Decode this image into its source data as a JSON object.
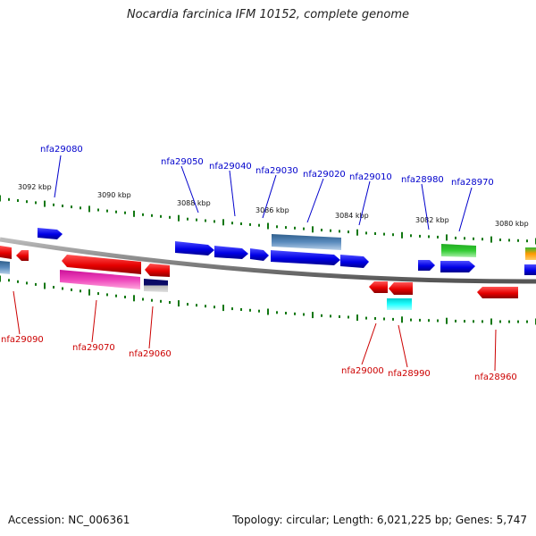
{
  "title": "Nocardia farcinica IFM 10152, complete genome",
  "footer": {
    "accession": "Accession: NC_006361",
    "summary": "Topology: circular; Length: 6,021,225 bp; Genes: 5,747"
  },
  "scale_labels": [
    "3092 kbp",
    "3090 kbp",
    "3088 kbp",
    "3086 kbp",
    "3084 kbp",
    "3082 kbp",
    "3080 kbp"
  ],
  "colors": {
    "forward_gene": "#0000ee",
    "reverse_gene": "#ee0000",
    "forward_label": "#0000cc",
    "reverse_label": "#cc0000",
    "tick": "#117711",
    "backbone": "#888888"
  },
  "forward_genes": [
    {
      "label": "nfa29080"
    },
    {
      "label": "nfa29050"
    },
    {
      "label": "nfa29040"
    },
    {
      "label": "nfa29030"
    },
    {
      "label": "nfa29020"
    },
    {
      "label": "nfa29010"
    },
    {
      "label": "nfa28980"
    },
    {
      "label": "nfa28970"
    }
  ],
  "reverse_genes": [
    {
      "label": "nfa29090"
    },
    {
      "label": "nfa29070"
    },
    {
      "label": "nfa29060"
    },
    {
      "label": "nfa29000"
    },
    {
      "label": "nfa28990"
    },
    {
      "label": "nfa28960"
    }
  ]
}
